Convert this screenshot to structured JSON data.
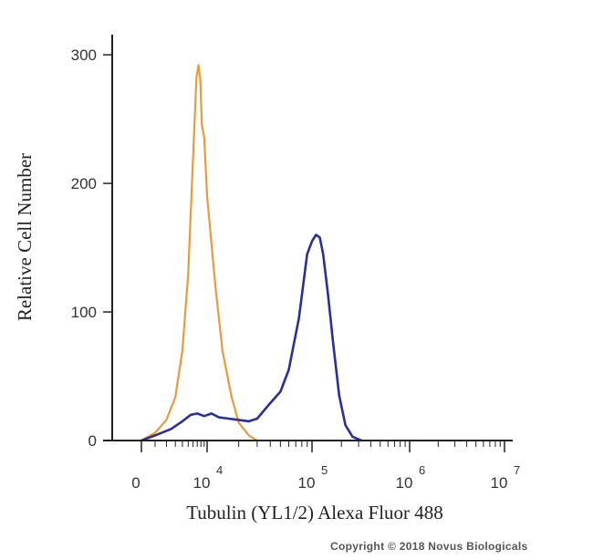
{
  "chart_data": {
    "type": "line",
    "title": "",
    "xlabel": "Tubulin (YL1/2) Alexa Fluor 488",
    "ylabel": "Relative Cell Number",
    "x_scale": "biexponential",
    "x_ticks": [
      {
        "value": 0,
        "base": "0",
        "exp": ""
      },
      {
        "value": 10000,
        "base": "10",
        "exp": "4"
      },
      {
        "value": 100000,
        "base": "10",
        "exp": "5"
      },
      {
        "value": 1000000,
        "base": "10",
        "exp": "6"
      },
      {
        "value": 10000000,
        "base": "10",
        "exp": "7"
      }
    ],
    "y_ticks": [
      0,
      100,
      200,
      300
    ],
    "ylim": [
      0,
      310
    ],
    "grid": false,
    "legend": "none",
    "series": [
      {
        "color": "#e89a3c",
        "points": [
          [
            0,
            0
          ],
          [
            1000,
            6
          ],
          [
            2000,
            16
          ],
          [
            3000,
            34
          ],
          [
            4000,
            70
          ],
          [
            5000,
            130
          ],
          [
            6000,
            220
          ],
          [
            6800,
            282
          ],
          [
            7300,
            292
          ],
          [
            7800,
            282
          ],
          [
            8300,
            245
          ],
          [
            9000,
            236
          ],
          [
            10000,
            190
          ],
          [
            12000,
            120
          ],
          [
            14000,
            70
          ],
          [
            17000,
            35
          ],
          [
            20000,
            14
          ],
          [
            25000,
            4
          ],
          [
            30000,
            0
          ]
        ]
      },
      {
        "color": "#2b2f9e",
        "points": [
          [
            0,
            0
          ],
          [
            1000,
            4
          ],
          [
            2500,
            9
          ],
          [
            4000,
            15
          ],
          [
            5500,
            20
          ],
          [
            7000,
            21
          ],
          [
            9000,
            19
          ],
          [
            11000,
            21
          ],
          [
            13000,
            18
          ],
          [
            16000,
            17
          ],
          [
            20000,
            16
          ],
          [
            25000,
            15
          ],
          [
            30000,
            17
          ],
          [
            38000,
            27
          ],
          [
            50000,
            38
          ],
          [
            60000,
            55
          ],
          [
            75000,
            95
          ],
          [
            90000,
            145
          ],
          [
            100000,
            155
          ],
          [
            110000,
            160
          ],
          [
            120000,
            158
          ],
          [
            130000,
            145
          ],
          [
            145000,
            115
          ],
          [
            165000,
            75
          ],
          [
            190000,
            35
          ],
          [
            220000,
            12
          ],
          [
            260000,
            3
          ],
          [
            320000,
            0
          ]
        ]
      }
    ]
  },
  "copyright": "Copyright © 2018 Novus Biologicals",
  "colors": {
    "axis": "#222222",
    "text": "#333333"
  }
}
